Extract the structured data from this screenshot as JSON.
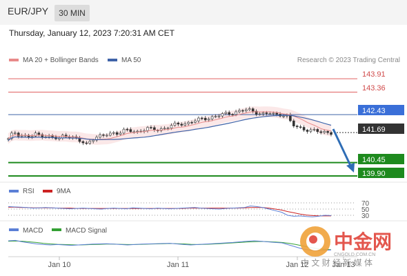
{
  "header": {
    "symbol": "EUR/JPY",
    "timeframe": "30 MIN"
  },
  "timestamp": "Thursday, January 12, 2023 7:20:31 AM CET",
  "colors": {
    "bollinger": "#e88a8a",
    "ma50": "#3f63a8",
    "support": "#1e8a1e",
    "resistance": "#e06060",
    "current": "#333333",
    "arrow": "#2f6db5",
    "rsi": "#5b7fd6",
    "rsi_ma": "#cc2222",
    "macd": "#5b7fd6",
    "macd_signal": "#33a033"
  },
  "chart_data": [
    {
      "type": "candlestick",
      "legend": [
        {
          "name": "MA 20 + Bollinger Bands",
          "color": "#e88a8a"
        },
        {
          "name": "MA 50",
          "color": "#3f63a8"
        }
      ],
      "credit": "Research © 2023 Trading Central",
      "ylim": [
        139.7,
        144.2
      ],
      "x_ticks": [
        "Jan 10",
        "Jan 11",
        "Jan 12",
        "Jan 13"
      ],
      "levels": [
        {
          "label": "143.91",
          "value": 143.91,
          "kind": "resistance"
        },
        {
          "label": "143.36",
          "value": 143.36,
          "kind": "resistance"
        },
        {
          "label": "142.43",
          "value": 142.43,
          "kind": "pivot"
        },
        {
          "label": "141.69",
          "value": 141.69,
          "kind": "current"
        },
        {
          "label": "140.45",
          "value": 140.45,
          "kind": "support"
        },
        {
          "label": "139.90",
          "value": 139.9,
          "kind": "support"
        }
      ],
      "arrow": {
        "from": 141.69,
        "to": 140.1
      },
      "price_path": [
        141.4,
        141.72,
        141.6,
        141.55,
        141.5,
        141.62,
        141.58,
        141.55,
        141.48,
        141.4,
        141.6,
        141.55,
        141.45,
        141.3,
        141.2,
        141.45,
        141.5,
        141.55,
        141.62,
        141.7,
        141.68,
        141.78,
        141.75,
        141.72,
        141.8,
        141.85,
        141.8,
        141.82,
        141.88,
        141.95,
        142.0,
        142.05,
        142.08,
        142.15,
        142.2,
        142.25,
        142.3,
        142.35,
        142.4,
        142.45,
        142.5,
        142.55,
        142.6,
        142.62,
        142.58,
        142.5,
        142.45,
        142.48,
        142.42,
        142.45,
        142.4,
        142.0,
        141.9,
        141.85,
        141.8,
        141.75,
        141.7,
        141.72,
        141.69
      ]
    },
    {
      "type": "line",
      "legend": [
        {
          "name": "RSI",
          "color": "#5b7fd6"
        },
        {
          "name": "9MA",
          "color": "#cc2222"
        }
      ],
      "levels": [
        "70",
        "50",
        "30"
      ],
      "rsi": [
        58,
        57,
        56,
        55,
        53,
        54,
        55,
        54,
        53,
        52,
        51,
        52,
        53,
        52,
        51,
        50,
        52,
        53,
        52,
        51,
        54,
        53,
        52,
        51,
        53,
        52,
        51,
        52,
        53,
        54,
        55,
        53,
        52,
        51,
        50,
        52,
        53,
        54,
        55,
        60,
        58,
        55,
        50,
        45,
        40,
        30,
        27,
        28,
        26,
        25,
        27,
        30,
        29
      ],
      "rsi_ma": [
        56,
        56,
        55,
        55,
        54,
        54,
        54,
        54,
        53,
        53,
        53,
        52,
        52,
        52,
        52,
        52,
        52,
        52,
        52,
        52,
        52,
        52,
        52,
        52,
        52,
        52,
        52,
        52,
        52,
        53,
        53,
        53,
        53,
        53,
        53,
        53,
        53,
        53,
        54,
        55,
        55,
        55,
        53,
        50,
        47,
        42,
        38,
        34,
        31,
        29,
        28,
        28,
        28
      ]
    },
    {
      "type": "line",
      "legend": [
        {
          "name": "MACD",
          "color": "#5b7fd6"
        },
        {
          "name": "MACD Signal",
          "color": "#33a033"
        }
      ],
      "macd": [
        0.1,
        0.12,
        0.05,
        0.0,
        -0.05,
        -0.08,
        -0.1,
        -0.08,
        -0.1,
        -0.12,
        -0.1,
        -0.08,
        -0.06,
        -0.05,
        -0.04,
        -0.06,
        -0.08,
        -0.1,
        -0.08,
        -0.06,
        -0.05,
        -0.04,
        -0.03,
        -0.02,
        -0.05,
        -0.08,
        -0.1,
        -0.08,
        -0.06,
        -0.04,
        -0.02,
        0.0,
        0.02,
        0.05,
        0.08,
        0.1,
        0.08,
        0.05,
        0.02,
        0.0,
        -0.1,
        -0.2,
        -0.3,
        -0.35,
        -0.38,
        -0.36,
        -0.34
      ],
      "macd_signal": [
        0.08,
        0.09,
        0.08,
        0.05,
        0.02,
        -0.02,
        -0.05,
        -0.07,
        -0.08,
        -0.09,
        -0.1,
        -0.09,
        -0.08,
        -0.07,
        -0.06,
        -0.06,
        -0.07,
        -0.08,
        -0.08,
        -0.07,
        -0.06,
        -0.05,
        -0.04,
        -0.03,
        -0.04,
        -0.05,
        -0.07,
        -0.08,
        -0.07,
        -0.06,
        -0.04,
        -0.02,
        0.0,
        0.02,
        0.04,
        0.06,
        0.07,
        0.06,
        0.04,
        0.02,
        -0.02,
        -0.08,
        -0.15,
        -0.22,
        -0.28,
        -0.31,
        -0.33
      ]
    }
  ],
  "watermark": {
    "name": "中金网",
    "domain": "CNGOLD.COM.CN",
    "tagline": "中 文 财 经 新 媒 体"
  }
}
